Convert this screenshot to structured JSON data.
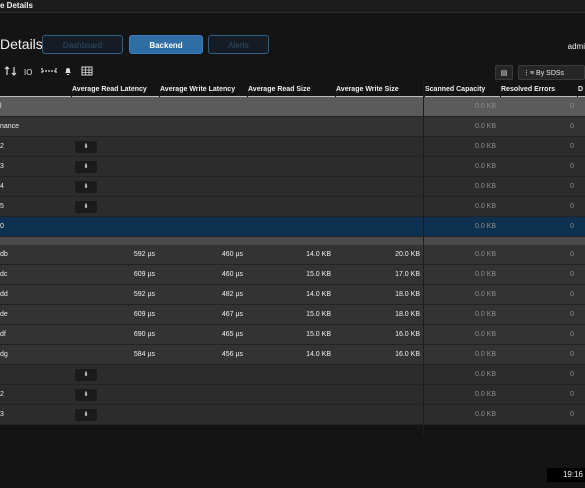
{
  "window": {
    "title": "e Details"
  },
  "page": {
    "title": "Details"
  },
  "tabs": [
    {
      "label": "Dashboard",
      "state": "inactive"
    },
    {
      "label": "Backend",
      "state": "active"
    },
    {
      "label": "Alerts",
      "state": "inactive"
    }
  ],
  "user": {
    "name": "admi"
  },
  "toolbar": {
    "icons": [
      "sort-icon",
      "io-icon",
      "range-icon",
      "bell-icon",
      "grid-icon"
    ],
    "io_label": "IO",
    "view_select_label": "By SDSs"
  },
  "columns": {
    "avg_read_latency": "Average Read Latency",
    "avg_write_latency": "Average Write Latency",
    "avg_read_size": "Average Read Size",
    "avg_write_size": "Average Write Size",
    "scanned_capacity": "Scanned Capacity",
    "resolved_errors": "Resolved Errors",
    "d": "D"
  },
  "rows": [
    {
      "kind": "grayhead",
      "name": "l",
      "scanned": "0.0 KB",
      "resolved": "0"
    },
    {
      "kind": "light",
      "name": "nance",
      "scanned": "0.0 KB",
      "resolved": "0"
    },
    {
      "kind": "dark",
      "name": "2",
      "chev": true,
      "scanned": "0.0 KB",
      "resolved": "0"
    },
    {
      "kind": "dark",
      "name": "3",
      "chev": true,
      "scanned": "0.0 KB",
      "resolved": "0"
    },
    {
      "kind": "dark",
      "name": "4",
      "chev": true,
      "scanned": "0.0 KB",
      "resolved": "0"
    },
    {
      "kind": "dark",
      "name": "5",
      "chev": true,
      "scanned": "0.0 KB",
      "resolved": "0"
    },
    {
      "kind": "sel",
      "name": "0",
      "scanned": "0.0 KB",
      "resolved": "0"
    },
    {
      "kind": "band"
    },
    {
      "kind": "light",
      "name": "db",
      "read_lat": "592 µs",
      "write_lat": "460 µs",
      "read_size": "14.0 KB",
      "write_size": "20.0 KB",
      "scanned": "0.0 KB",
      "resolved": "0"
    },
    {
      "kind": "light",
      "name": "dc",
      "read_lat": "609 µs",
      "write_lat": "460 µs",
      "read_size": "15.0 KB",
      "write_size": "17.0 KB",
      "scanned": "0.0 KB",
      "resolved": "0"
    },
    {
      "kind": "light",
      "name": "dd",
      "read_lat": "592 µs",
      "write_lat": "482 µs",
      "read_size": "14.0 KB",
      "write_size": "18.0 KB",
      "scanned": "0.0 KB",
      "resolved": "0"
    },
    {
      "kind": "light",
      "name": "de",
      "read_lat": "609 µs",
      "write_lat": "467 µs",
      "read_size": "15.0 KB",
      "write_size": "18.0 KB",
      "scanned": "0.0 KB",
      "resolved": "0"
    },
    {
      "kind": "light",
      "name": "df",
      "read_lat": "690 µs",
      "write_lat": "465 µs",
      "read_size": "15.0 KB",
      "write_size": "16.0 KB",
      "scanned": "0.0 KB",
      "resolved": "0"
    },
    {
      "kind": "light",
      "name": "dg",
      "read_lat": "584 µs",
      "write_lat": "456 µs",
      "read_size": "14.0 KB",
      "write_size": "16.0 KB",
      "scanned": "0.0 KB",
      "resolved": "0"
    },
    {
      "kind": "dark",
      "name": "",
      "chev": true,
      "scanned": "0.0 KB",
      "resolved": "0"
    },
    {
      "kind": "dark",
      "name": "2",
      "chev": true,
      "scanned": "0.0 KB",
      "resolved": "0"
    },
    {
      "kind": "dark",
      "name": "3",
      "chev": true,
      "scanned": "0.0 KB",
      "resolved": "0"
    }
  ],
  "clock": "19:16"
}
